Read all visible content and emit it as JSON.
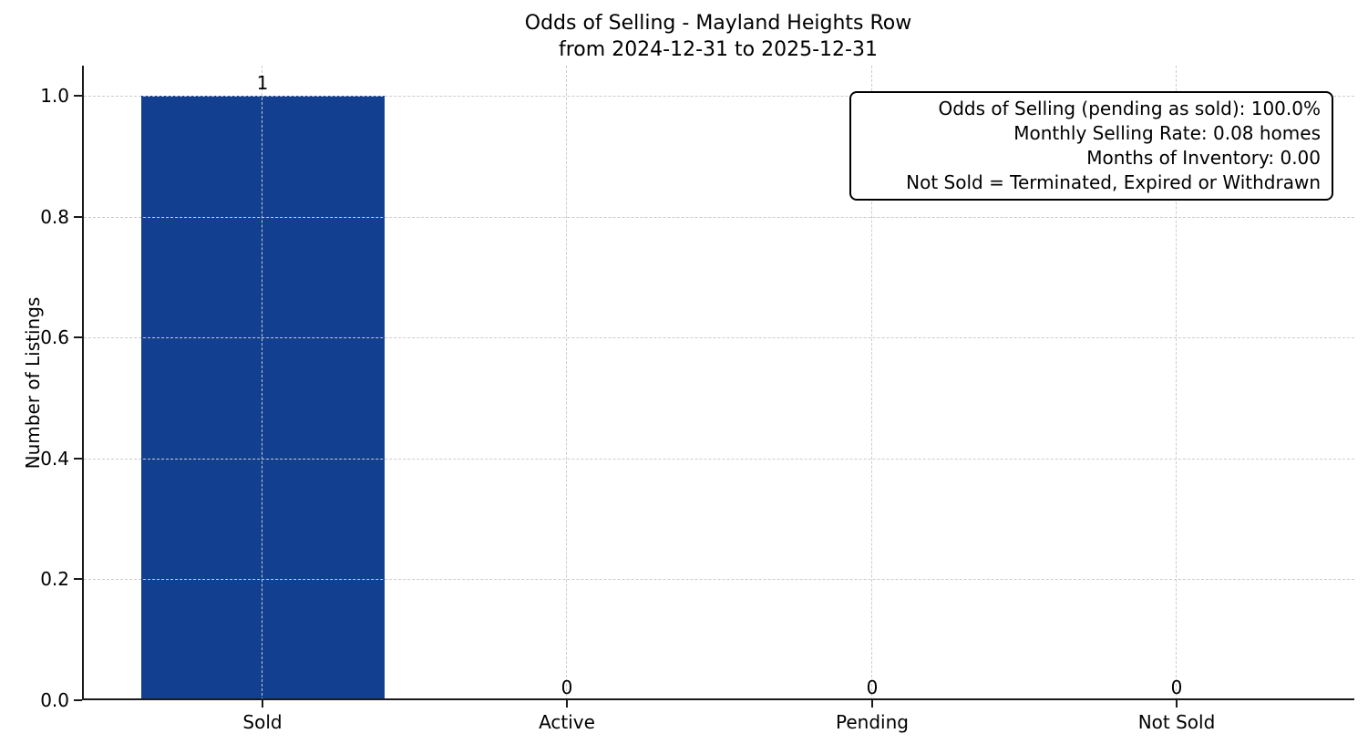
{
  "chart_data": {
    "type": "bar",
    "title": "Odds of Selling - Mayland Heights Row",
    "subtitle": "from 2024-12-31 to 2025-12-31",
    "categories": [
      "Sold",
      "Active",
      "Pending",
      "Not Sold"
    ],
    "values": [
      1,
      0,
      0,
      0
    ],
    "ylabel": "Number of Listings",
    "xlabel": "",
    "ylim": [
      0,
      1.05
    ],
    "ytick_labels": [
      "0.0",
      "0.2",
      "0.4",
      "0.6",
      "0.8",
      "1.0"
    ],
    "grid": true,
    "legend_position": "none",
    "bar_color": "#123f8f",
    "grid_color": "#cccccc",
    "annotation_box": {
      "lines": [
        "Odds of Selling (pending as sold): 100.0%",
        "Monthly Selling Rate: 0.08 homes",
        "Months of Inventory: 0.00",
        "Not Sold = Terminated, Expired or Withdrawn"
      ]
    }
  }
}
